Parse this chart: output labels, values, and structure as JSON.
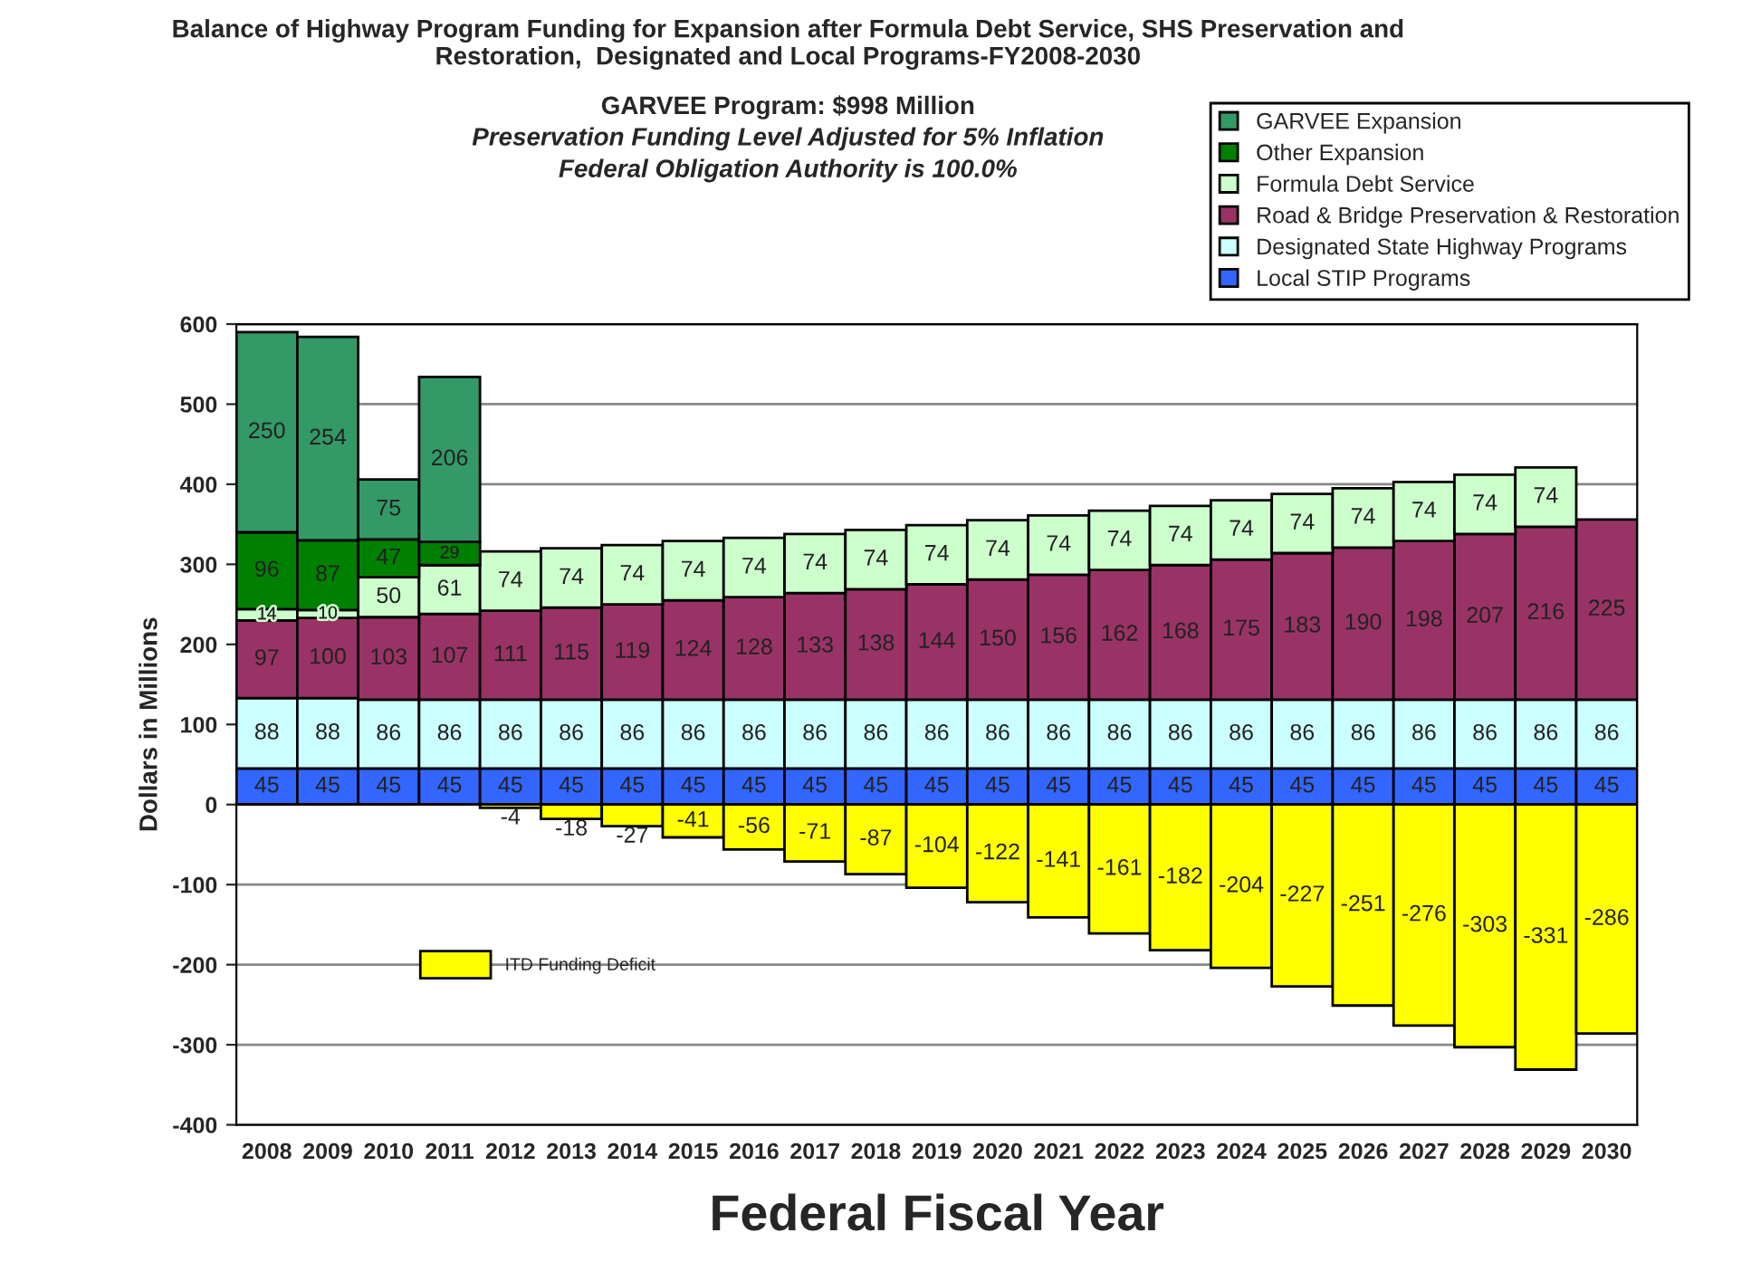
{
  "chart_data": {
    "type": "bar",
    "stacked": true,
    "data_labels": true,
    "title": "Balance of Highway Program Funding for Expansion after Formula Debt Service, SHS Preservation and\nRestoration,  Designated and Local Programs-FY2008-2030",
    "subtitle": "GARVEE Program: $998 Million",
    "annotations": [
      "Preservation Funding Level Adjusted for 5% Inflation",
      "Federal Obligation Authority is 100.0%"
    ],
    "xlabel": "Federal Fiscal Year",
    "ylabel": "Dollars in Millions",
    "categories": [
      "2008",
      "2009",
      "2010",
      "2011",
      "2012",
      "2013",
      "2014",
      "2015",
      "2016",
      "2017",
      "2018",
      "2019",
      "2020",
      "2021",
      "2022",
      "2023",
      "2024",
      "2025",
      "2026",
      "2027",
      "2028",
      "2029",
      "2030"
    ],
    "ylim": [
      -400,
      600
    ],
    "yticks": [
      -400,
      -300,
      -200,
      -100,
      0,
      100,
      200,
      300,
      400,
      500,
      600
    ],
    "grid": "y",
    "legend": "top right",
    "series": [
      {
        "name": "Local STIP Programs",
        "color": "#3366ff",
        "values": [
          45,
          45,
          45,
          45,
          45,
          45,
          45,
          45,
          45,
          45,
          45,
          45,
          45,
          45,
          45,
          45,
          45,
          45,
          45,
          45,
          45,
          45,
          45
        ]
      },
      {
        "name": "Designated State Highway Programs",
        "color": "#ccffff",
        "values": [
          88,
          88,
          86,
          86,
          86,
          86,
          86,
          86,
          86,
          86,
          86,
          86,
          86,
          86,
          86,
          86,
          86,
          86,
          86,
          86,
          86,
          86,
          86
        ]
      },
      {
        "name": "Road & Bridge Preservation & Restoration",
        "color": "#993366",
        "values": [
          97,
          100,
          103,
          107,
          111,
          115,
          119,
          124,
          128,
          133,
          138,
          144,
          150,
          156,
          162,
          168,
          175,
          183,
          190,
          198,
          207,
          216,
          225
        ]
      },
      {
        "name": "Formula Debt Service",
        "color": "#ccffcc",
        "values": [
          14,
          10,
          50,
          61,
          74,
          74,
          74,
          74,
          74,
          74,
          74,
          74,
          74,
          74,
          74,
          74,
          74,
          74,
          74,
          74,
          74,
          74,
          null
        ]
      },
      {
        "name": "Other Expansion",
        "color": "#008000",
        "values": [
          96,
          87,
          47,
          29,
          null,
          null,
          null,
          null,
          null,
          null,
          null,
          null,
          null,
          null,
          null,
          null,
          null,
          null,
          null,
          null,
          null,
          null,
          null
        ]
      },
      {
        "name": "GARVEE Expansion",
        "color": "#339966",
        "values": [
          250,
          254,
          75,
          206,
          null,
          null,
          null,
          null,
          null,
          null,
          null,
          null,
          null,
          null,
          null,
          null,
          null,
          null,
          null,
          null,
          null,
          null,
          null
        ]
      },
      {
        "name": "ITD Funding Deficit",
        "color": "#ffff00",
        "values": [
          null,
          null,
          null,
          null,
          -4,
          -18,
          -27,
          -41,
          -56,
          -71,
          -87,
          -104,
          -122,
          -141,
          -161,
          -182,
          -204,
          -227,
          -251,
          -276,
          -303,
          -331,
          -286
        ]
      }
    ]
  }
}
